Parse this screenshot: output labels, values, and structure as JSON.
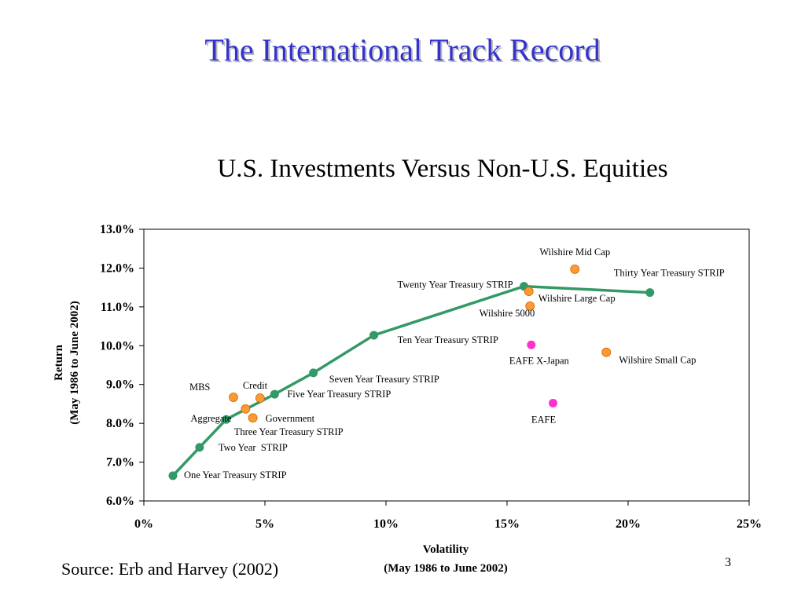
{
  "slide": {
    "title": "The International Track Record",
    "source": "Source: Erb and Harvey (2002)",
    "page_number": "3"
  },
  "colors": {
    "title": "#3333cc",
    "frontier": "#339966",
    "us_point": "#ff9933",
    "intl_point": "#ff33cc",
    "point_border": "#cc6600"
  },
  "chart_data": {
    "type": "scatter",
    "title": "U.S. Investments Versus Non-U.S. Equities",
    "xlabel": [
      "Volatility",
      "(May 1986 to June 2002)"
    ],
    "ylabel": [
      "Return",
      "(May 1986 to June 2002)"
    ],
    "xlim": [
      0,
      25
    ],
    "ylim": [
      6.0,
      13.0
    ],
    "x_ticks": [
      0,
      5,
      10,
      15,
      20,
      25
    ],
    "x_tick_labels": [
      "0%",
      "5%",
      "10%",
      "15%",
      "20%",
      "25%"
    ],
    "y_ticks": [
      6,
      7,
      8,
      9,
      10,
      11,
      12,
      13
    ],
    "y_tick_labels": [
      "6.0%",
      "7.0%",
      "8.0%",
      "9.0%",
      "10.0%",
      "11.0%",
      "12.0%",
      "13.0%"
    ],
    "grid": false,
    "series": [
      {
        "kind": "frontier",
        "points": [
          {
            "label": "One Year Treasury STRIP",
            "x": 1.2,
            "y": 6.65
          },
          {
            "label": "Two Year  STRIP",
            "x": 2.3,
            "y": 7.38
          },
          {
            "label": "Three Year Treasury STRIP",
            "x": 3.4,
            "y": 8.1
          },
          {
            "label": "Five Year Treasury STRIP",
            "x": 5.4,
            "y": 8.75
          },
          {
            "label": "Seven Year Treasury STRIP",
            "x": 7.0,
            "y": 9.3
          },
          {
            "label": "Ten Year Treasury STRIP",
            "x": 9.5,
            "y": 10.27
          },
          {
            "label": "Twenty Year Treasury STRIP",
            "x": 15.7,
            "y": 11.53
          },
          {
            "label": "Thirty Year Treasury STRIP",
            "x": 20.9,
            "y": 11.37
          }
        ]
      },
      {
        "kind": "us",
        "points": [
          {
            "label": "MBS",
            "x": 3.7,
            "y": 8.67
          },
          {
            "label": "Credit",
            "x": 4.8,
            "y": 8.65
          },
          {
            "label": "Aggregate",
            "x": 4.2,
            "y": 8.37
          },
          {
            "label": "Government",
            "x": 4.5,
            "y": 8.14
          },
          {
            "label": "Wilshire Mid Cap",
            "x": 17.8,
            "y": 11.97
          },
          {
            "label": "Wilshire Large Cap",
            "x": 15.9,
            "y": 11.4
          },
          {
            "label": "Wilshire 5000",
            "x": 15.95,
            "y": 11.02
          },
          {
            "label": "Wilshire Small Cap",
            "x": 19.1,
            "y": 9.83
          }
        ]
      },
      {
        "kind": "international",
        "points": [
          {
            "label": "EAFE X-Japan",
            "x": 16.0,
            "y": 10.02
          },
          {
            "label": "EAFE",
            "x": 16.9,
            "y": 8.52
          }
        ]
      }
    ]
  }
}
